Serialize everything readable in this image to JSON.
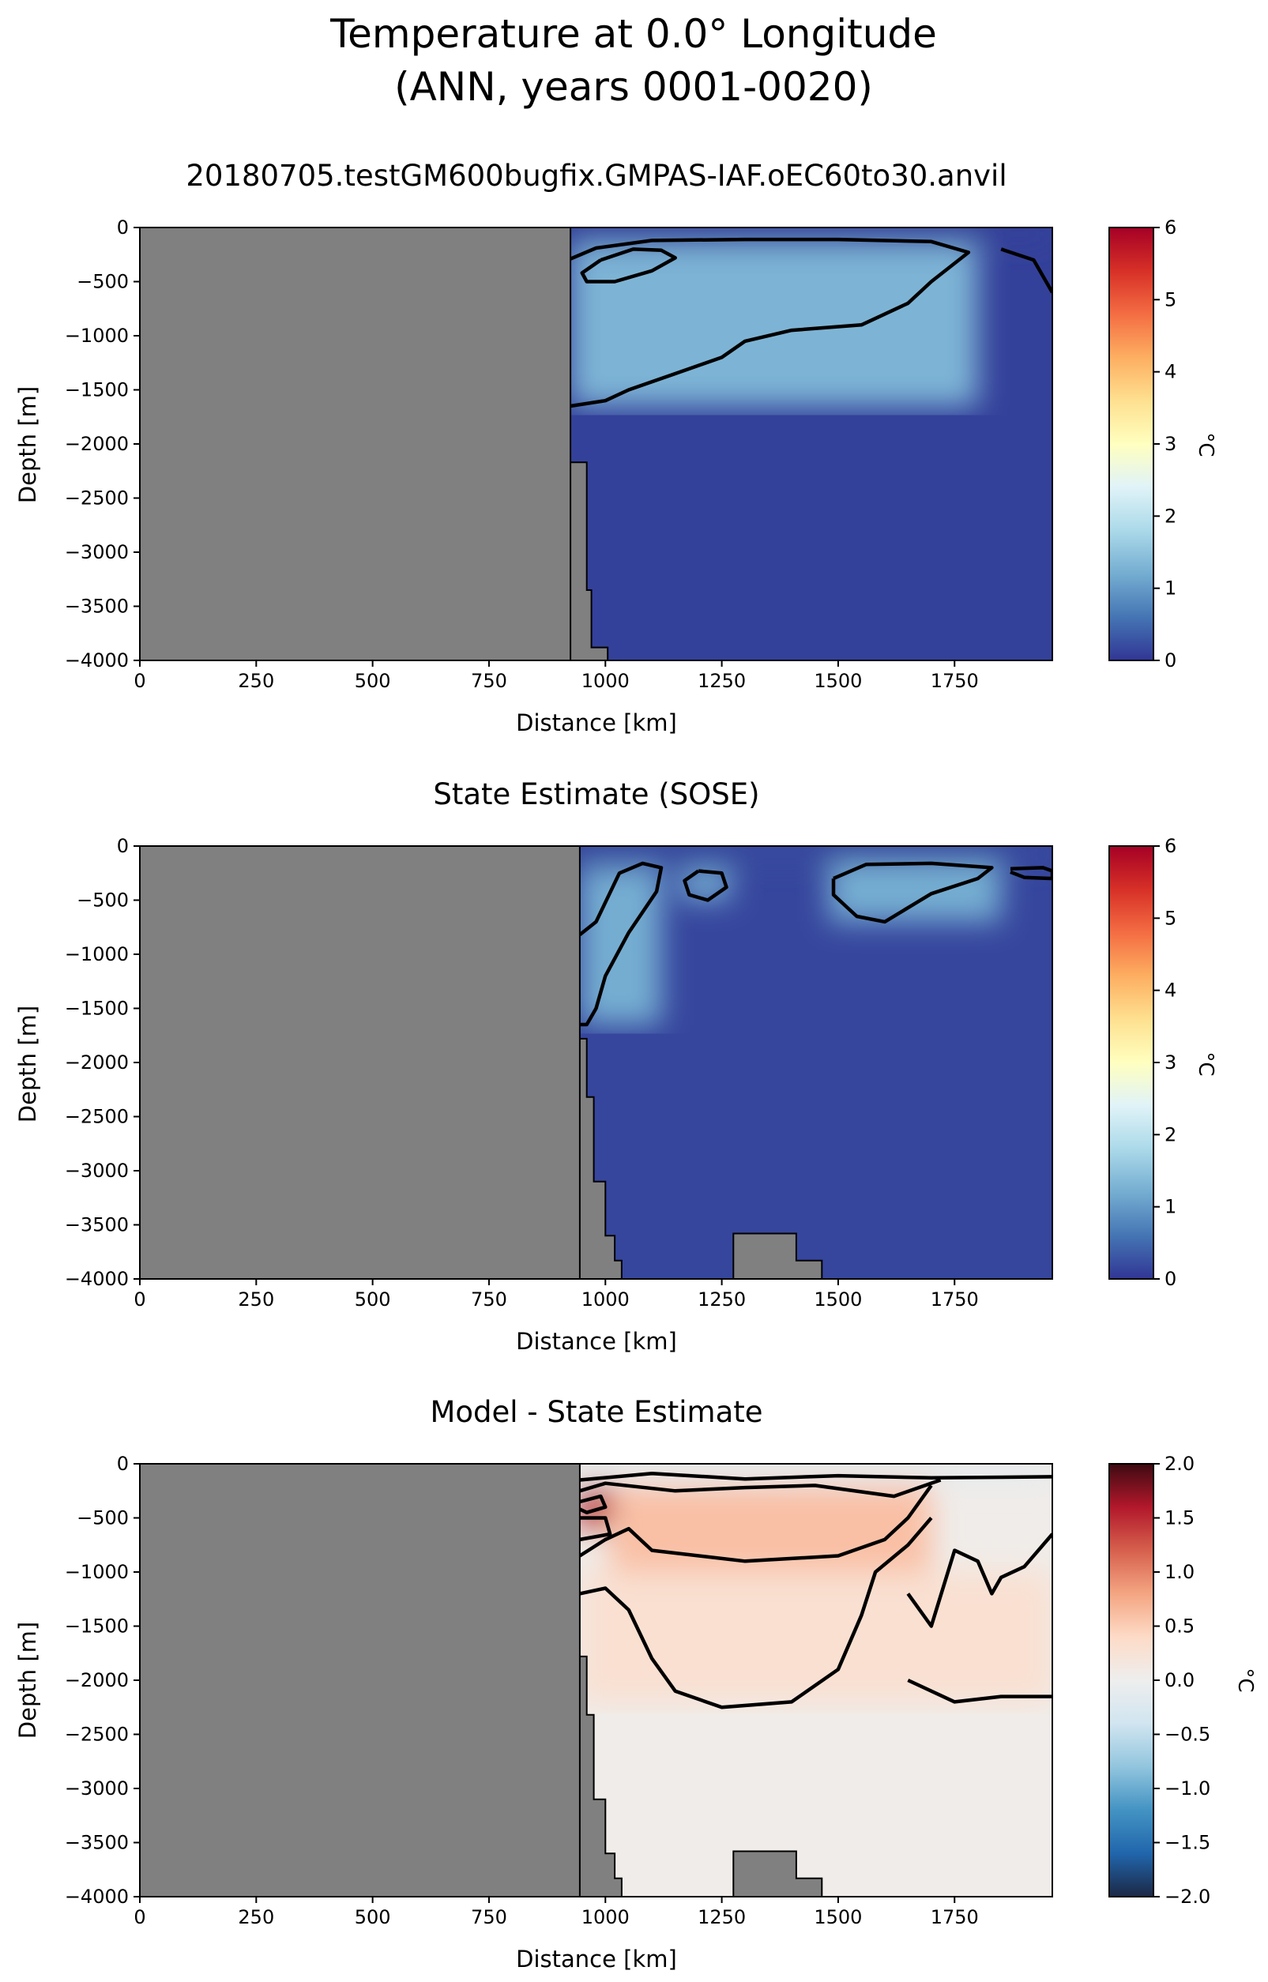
{
  "figure": {
    "title_line1": "Temperature at 0.0° Longitude",
    "title_line2": "(ANN, years 0001-0020)"
  },
  "chart_data": [
    {
      "type": "heatmap",
      "title": "20180705.testGM600bugfix.GMPAS-IAF.oEC60to30.anvil",
      "xlabel": "Distance [km]",
      "ylabel": "Depth [m]",
      "xlim": [
        0,
        1960
      ],
      "ylim": [
        -4000,
        0
      ],
      "xticks": [
        0,
        250,
        500,
        750,
        1000,
        1250,
        1500,
        1750
      ],
      "yticks": [
        0,
        -500,
        -1000,
        -1500,
        -2000,
        -2500,
        -3000,
        -3500,
        -4000
      ],
      "colorbar": {
        "label": "°C",
        "range": [
          0,
          6
        ],
        "ticks": [
          0,
          1,
          2,
          3,
          4,
          5,
          6
        ],
        "colormap": "RdYlBu_r"
      },
      "land_mask_color": "#808080",
      "bathymetry": [
        {
          "x": 925,
          "depth": -4000
        },
        {
          "x": 925,
          "depth": -2170
        },
        {
          "x": 960,
          "depth": -2170
        },
        {
          "x": 960,
          "depth": -3350
        },
        {
          "x": 970,
          "depth": -3350
        },
        {
          "x": 970,
          "depth": -3880
        },
        {
          "x": 1005,
          "depth": -3880
        },
        {
          "x": 1005,
          "depth": -4000
        }
      ],
      "field_summary": [
        {
          "x_range": [
            925,
            1960
          ],
          "depth_range": [
            -120,
            0
          ],
          "value_c": 0.1
        },
        {
          "x_range": [
            940,
            1160
          ],
          "depth_range": [
            -600,
            -250
          ],
          "value_c": 2.0
        },
        {
          "x_range": [
            925,
            1800
          ],
          "depth_range": [
            -1650,
            -150
          ],
          "value_c": 1.3
        },
        {
          "x_range": [
            925,
            1960
          ],
          "depth_range": [
            -4000,
            -1700
          ],
          "value_c": 0.1
        }
      ],
      "contours": [
        {
          "level": 1.0,
          "path": [
            [
              925,
              -290
            ],
            [
              980,
              -190
            ],
            [
              1100,
              -120
            ],
            [
              1300,
              -110
            ],
            [
              1500,
              -110
            ],
            [
              1700,
              -130
            ],
            [
              1780,
              -230
            ],
            [
              1700,
              -500
            ],
            [
              1650,
              -700
            ],
            [
              1550,
              -900
            ],
            [
              1400,
              -950
            ],
            [
              1300,
              -1050
            ],
            [
              1250,
              -1200
            ],
            [
              1150,
              -1350
            ],
            [
              1050,
              -1500
            ],
            [
              1000,
              -1600
            ],
            [
              925,
              -1650
            ]
          ]
        },
        {
          "level": 1.5,
          "path": [
            [
              990,
              -300
            ],
            [
              1060,
              -200
            ],
            [
              1120,
              -210
            ],
            [
              1150,
              -280
            ],
            [
              1100,
              -400
            ],
            [
              1020,
              -500
            ],
            [
              960,
              -500
            ],
            [
              950,
              -420
            ],
            [
              990,
              -300
            ]
          ]
        },
        {
          "level": 1.0,
          "path": [
            [
              1850,
              -200
            ],
            [
              1920,
              -300
            ],
            [
              1960,
              -600
            ]
          ]
        }
      ]
    },
    {
      "type": "heatmap",
      "title": "State Estimate (SOSE)",
      "xlabel": "Distance [km]",
      "ylabel": "Depth [m]",
      "xlim": [
        0,
        1960
      ],
      "ylim": [
        -4000,
        0
      ],
      "xticks": [
        0,
        250,
        500,
        750,
        1000,
        1250,
        1500,
        1750
      ],
      "yticks": [
        0,
        -500,
        -1000,
        -1500,
        -2000,
        -2500,
        -3000,
        -3500,
        -4000
      ],
      "colorbar": {
        "label": "°C",
        "range": [
          0,
          6
        ],
        "ticks": [
          0,
          1,
          2,
          3,
          4,
          5,
          6
        ],
        "colormap": "RdYlBu_r"
      },
      "land_mask_color": "#808080",
      "bathymetry": [
        {
          "x": 945,
          "depth": -4000
        },
        {
          "x": 945,
          "depth": -1780
        },
        {
          "x": 960,
          "depth": -1780
        },
        {
          "x": 960,
          "depth": -2320
        },
        {
          "x": 975,
          "depth": -2320
        },
        {
          "x": 975,
          "depth": -3100
        },
        {
          "x": 1000,
          "depth": -3100
        },
        {
          "x": 1000,
          "depth": -3600
        },
        {
          "x": 1020,
          "depth": -3600
        },
        {
          "x": 1020,
          "depth": -3830
        },
        {
          "x": 1035,
          "depth": -3830
        },
        {
          "x": 1035,
          "depth": -4000
        },
        {
          "x": 1275,
          "depth": -4000
        },
        {
          "x": 1275,
          "depth": -3580
        },
        {
          "x": 1410,
          "depth": -3580
        },
        {
          "x": 1410,
          "depth": -3830
        },
        {
          "x": 1465,
          "depth": -3830
        },
        {
          "x": 1465,
          "depth": -4000
        }
      ],
      "field_summary": [
        {
          "x_range": [
            945,
            1960
          ],
          "depth_range": [
            -150,
            0
          ],
          "value_c": 0.2
        },
        {
          "x_range": [
            945,
            1120
          ],
          "depth_range": [
            -1650,
            -200
          ],
          "value_c": 1.2
        },
        {
          "x_range": [
            1160,
            1270
          ],
          "depth_range": [
            -500,
            -220
          ],
          "value_c": 1.2
        },
        {
          "x_range": [
            1480,
            1850
          ],
          "depth_range": [
            -700,
            -150
          ],
          "value_c": 1.2
        },
        {
          "x_range": [
            945,
            1960
          ],
          "depth_range": [
            -4000,
            -1700
          ],
          "value_c": 0.15
        }
      ],
      "contours": [
        {
          "level": 1.0,
          "path": [
            [
              945,
              -820
            ],
            [
              980,
              -700
            ],
            [
              1030,
              -250
            ],
            [
              1080,
              -160
            ],
            [
              1120,
              -200
            ],
            [
              1110,
              -420
            ],
            [
              1050,
              -800
            ],
            [
              1000,
              -1200
            ],
            [
              980,
              -1500
            ],
            [
              960,
              -1650
            ],
            [
              945,
              -1650
            ]
          ]
        },
        {
          "level": 1.0,
          "path": [
            [
              1200,
              -230
            ],
            [
              1250,
              -250
            ],
            [
              1260,
              -380
            ],
            [
              1220,
              -500
            ],
            [
              1180,
              -450
            ],
            [
              1170,
              -320
            ],
            [
              1200,
              -230
            ]
          ]
        },
        {
          "level": 1.0,
          "path": [
            [
              1490,
              -300
            ],
            [
              1560,
              -170
            ],
            [
              1700,
              -160
            ],
            [
              1830,
              -200
            ],
            [
              1800,
              -300
            ],
            [
              1700,
              -440
            ],
            [
              1600,
              -700
            ],
            [
              1540,
              -650
            ],
            [
              1490,
              -450
            ],
            [
              1490,
              -300
            ]
          ]
        },
        {
          "level": 1.0,
          "path": [
            [
              1870,
              -210
            ],
            [
              1940,
              -200
            ],
            [
              1960,
              -230
            ],
            [
              1960,
              -300
            ],
            [
              1900,
              -290
            ],
            [
              1870,
              -240
            ]
          ]
        }
      ]
    },
    {
      "type": "heatmap",
      "title": "Model - State Estimate",
      "xlabel": "Distance [km]",
      "ylabel": "Depth [m]",
      "xlim": [
        0,
        1960
      ],
      "ylim": [
        -4000,
        0
      ],
      "xticks": [
        0,
        250,
        500,
        750,
        1000,
        1250,
        1500,
        1750
      ],
      "yticks": [
        0,
        -500,
        -1000,
        -1500,
        -2000,
        -2500,
        -3000,
        -3500,
        -4000
      ],
      "colorbar": {
        "label": "°C",
        "range": [
          -2,
          2
        ],
        "ticks": [
          2.0,
          1.5,
          1.0,
          0.5,
          0.0,
          -0.5,
          -1.0,
          -1.5,
          -2.0
        ],
        "colormap": "RdBu_r"
      },
      "land_mask_color": "#808080",
      "bathymetry": [
        {
          "x": 945,
          "depth": -4000
        },
        {
          "x": 945,
          "depth": -1780
        },
        {
          "x": 960,
          "depth": -1780
        },
        {
          "x": 960,
          "depth": -2320
        },
        {
          "x": 975,
          "depth": -2320
        },
        {
          "x": 975,
          "depth": -3100
        },
        {
          "x": 1000,
          "depth": -3100
        },
        {
          "x": 1000,
          "depth": -3600
        },
        {
          "x": 1020,
          "depth": -3600
        },
        {
          "x": 1020,
          "depth": -3830
        },
        {
          "x": 1035,
          "depth": -3830
        },
        {
          "x": 1035,
          "depth": -4000
        },
        {
          "x": 1275,
          "depth": -4000
        },
        {
          "x": 1275,
          "depth": -3580
        },
        {
          "x": 1410,
          "depth": -3580
        },
        {
          "x": 1410,
          "depth": -3830
        },
        {
          "x": 1465,
          "depth": -3830
        },
        {
          "x": 1465,
          "depth": -4000
        }
      ],
      "field_summary": [
        {
          "x_range": [
            945,
            1960
          ],
          "depth_range": [
            -150,
            0
          ],
          "value_c": -0.2
        },
        {
          "x_range": [
            945,
            1010
          ],
          "depth_range": [
            -600,
            -200
          ],
          "value_c": 1.6
        },
        {
          "x_range": [
            1010,
            1700
          ],
          "depth_range": [
            -1000,
            -200
          ],
          "value_c": 0.6
        },
        {
          "x_range": [
            945,
            1960
          ],
          "depth_range": [
            -2200,
            -1000
          ],
          "value_c": 0.3
        },
        {
          "x_range": [
            945,
            1960
          ],
          "depth_range": [
            -4000,
            -2300
          ],
          "value_c": 0.05
        }
      ],
      "contours": [
        {
          "level": 0.0,
          "path": [
            [
              945,
              -150
            ],
            [
              1100,
              -90
            ],
            [
              1300,
              -140
            ],
            [
              1500,
              -110
            ],
            [
              1700,
              -130
            ],
            [
              1960,
              -120
            ]
          ]
        },
        {
          "level": 0.5,
          "path": [
            [
              945,
              -250
            ],
            [
              1000,
              -180
            ],
            [
              1150,
              -250
            ],
            [
              1300,
              -220
            ],
            [
              1450,
              -200
            ],
            [
              1620,
              -300
            ],
            [
              1720,
              -150
            ]
          ]
        },
        {
          "level": 1.0,
          "path": [
            [
              945,
              -350
            ],
            [
              990,
              -300
            ],
            [
              1000,
              -400
            ],
            [
              960,
              -450
            ],
            [
              945,
              -420
            ]
          ]
        },
        {
          "level": 1.5,
          "path": [
            [
              945,
              -500
            ],
            [
              1000,
              -500
            ],
            [
              1010,
              -650
            ],
            [
              945,
              -700
            ]
          ]
        },
        {
          "level": 0.5,
          "path": [
            [
              945,
              -850
            ],
            [
              1000,
              -700
            ],
            [
              1050,
              -600
            ],
            [
              1100,
              -800
            ],
            [
              1300,
              -900
            ],
            [
              1500,
              -850
            ],
            [
              1600,
              -700
            ],
            [
              1650,
              -500
            ],
            [
              1700,
              -200
            ]
          ]
        },
        {
          "level": 0.5,
          "path": [
            [
              945,
              -1200
            ],
            [
              1000,
              -1150
            ],
            [
              1050,
              -1350
            ],
            [
              1100,
              -1800
            ],
            [
              1150,
              -2100
            ],
            [
              1250,
              -2250
            ],
            [
              1400,
              -2200
            ],
            [
              1500,
              -1900
            ],
            [
              1550,
              -1400
            ],
            [
              1580,
              -1000
            ],
            [
              1650,
              -750
            ],
            [
              1700,
              -500
            ]
          ]
        },
        {
          "level": 0.5,
          "path": [
            [
              1650,
              -1200
            ],
            [
              1700,
              -1500
            ],
            [
              1750,
              -800
            ],
            [
              1800,
              -900
            ],
            [
              1830,
              -1200
            ],
            [
              1850,
              -1050
            ],
            [
              1900,
              -950
            ],
            [
              1960,
              -650
            ]
          ]
        },
        {
          "level": 0.5,
          "path": [
            [
              1650,
              -2000
            ],
            [
              1750,
              -2200
            ],
            [
              1850,
              -2150
            ],
            [
              1960,
              -2150
            ]
          ]
        }
      ]
    }
  ]
}
